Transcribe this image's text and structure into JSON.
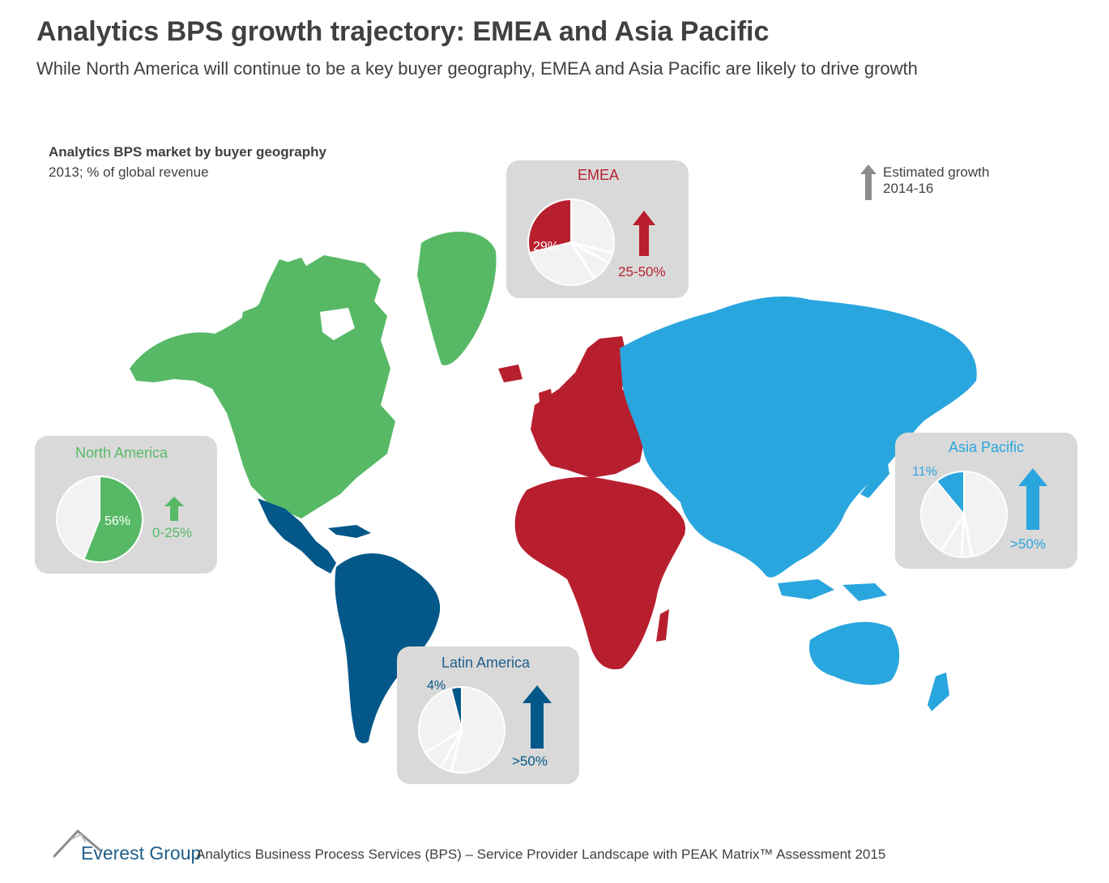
{
  "header": {
    "title": "Analytics BPS growth trajectory: EMEA and Asia Pacific",
    "subtitle": "While North America will continue to be a key buyer geography, EMEA and Asia Pacific are likely to drive growth"
  },
  "caption": {
    "title": "Analytics BPS market by buyer geography",
    "subtitle": "2013; % of global revenue"
  },
  "legend": {
    "line1": "Estimated growth",
    "line2": "2014-16",
    "icon": "up-arrow-icon",
    "color": "#8c8c8c"
  },
  "colors": {
    "north_america": "#57b966",
    "latin_america": "#035789",
    "emea": "#b81f2e",
    "asia_pacific": "#2aa6de",
    "pie_rest": "#f2f2f2",
    "box": "#d9d9d9"
  },
  "chart_data": {
    "type": "pie",
    "regions": [
      {
        "name": "North America",
        "share_pct": 56,
        "share_label": "56%",
        "growth": "0-25%",
        "color": "#57b966"
      },
      {
        "name": "EMEA",
        "share_pct": 29,
        "share_label": "29%",
        "growth": "25-50%",
        "color": "#b81f2e"
      },
      {
        "name": "Asia Pacific",
        "share_pct": 11,
        "share_label": "11%",
        "growth": ">50%",
        "color": "#2aa6de"
      },
      {
        "name": "Latin America",
        "share_pct": 4,
        "share_label": "4%",
        "growth": ">50%",
        "color": "#035789"
      }
    ]
  },
  "footer": {
    "brand": "Everest Group",
    "text": "Analytics Business Process Services (BPS) – Service Provider Landscape with PEAK Matrix™ Assessment 2015"
  }
}
